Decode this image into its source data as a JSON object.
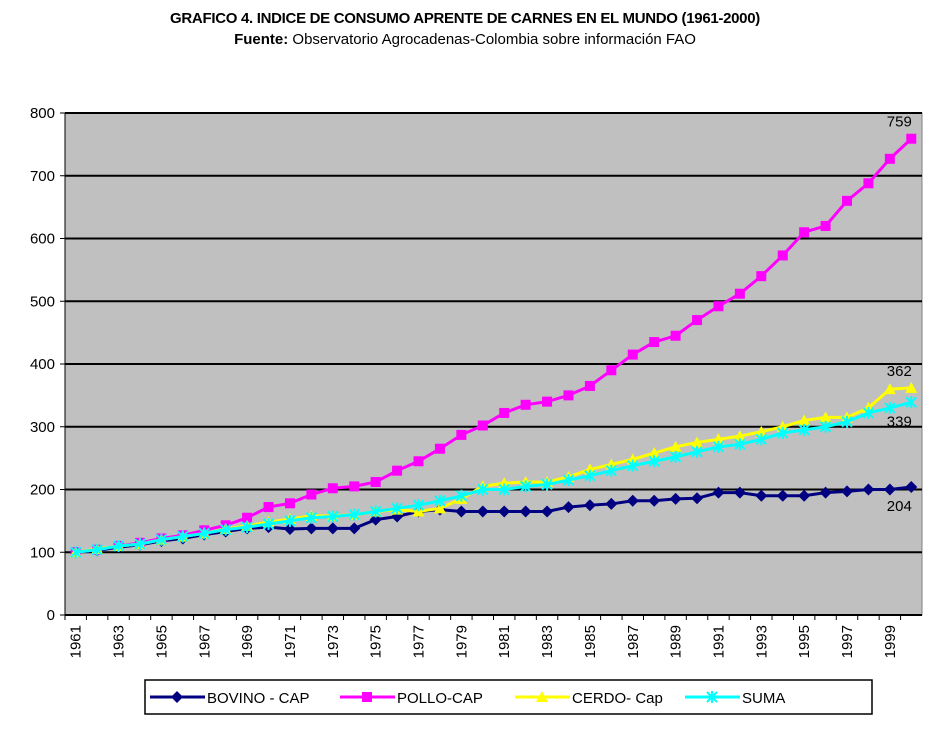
{
  "chart_data": {
    "type": "line",
    "title": "GRAFICO 4. INDICE DE CONSUMO APRENTE DE CARNES EN EL MUNDO (1961-2000)",
    "source_label": "Fuente:",
    "subtitle": "Observatorio Agrocadenas-Colombia sobre información FAO",
    "categories": [
      "1961",
      null,
      "1963",
      null,
      "1965",
      null,
      "1967",
      null,
      "1969",
      null,
      "1971",
      null,
      "1973",
      null,
      "1975",
      null,
      "1977",
      null,
      "1979",
      null,
      "1981",
      null,
      "1983",
      null,
      "1985",
      null,
      "1987",
      null,
      "1989",
      null,
      "1991",
      null,
      "1993",
      null,
      "1995",
      null,
      "1997",
      null,
      "1999",
      null
    ],
    "ylim": [
      0,
      800
    ],
    "yticks": [
      0,
      100,
      200,
      300,
      400,
      500,
      600,
      700,
      800
    ],
    "grid": true,
    "series": [
      {
        "name": "BOVINO - CAP",
        "color": "#000080",
        "marker": "diamond",
        "values": [
          100,
          103,
          108,
          112,
          118,
          122,
          128,
          133,
          138,
          140,
          137,
          138,
          138,
          138,
          152,
          157,
          165,
          168,
          165,
          165,
          165,
          165,
          165,
          172,
          175,
          177,
          182,
          182,
          185,
          186,
          195,
          195,
          190,
          190,
          190,
          195,
          197,
          200,
          200,
          204
        ]
      },
      {
        "name": "POLLO-CAP",
        "color": "#ff00ff",
        "marker": "square",
        "values": [
          100,
          104,
          110,
          115,
          122,
          127,
          135,
          143,
          155,
          172,
          178,
          192,
          202,
          205,
          212,
          230,
          245,
          265,
          287,
          302,
          322,
          335,
          340,
          350,
          365,
          390,
          415,
          435,
          445,
          470,
          492,
          512,
          540,
          573,
          610,
          620,
          660,
          688,
          727,
          759
        ]
      },
      {
        "name": "CERDO- Cap",
        "color": "#ffff00",
        "marker": "triangle",
        "values": [
          100,
          105,
          110,
          113,
          120,
          125,
          130,
          137,
          142,
          148,
          153,
          158,
          158,
          160,
          165,
          168,
          165,
          170,
          185,
          205,
          210,
          212,
          212,
          220,
          232,
          240,
          248,
          258,
          268,
          275,
          280,
          285,
          292,
          300,
          310,
          315,
          315,
          330,
          360,
          362
        ]
      },
      {
        "name": "SUMA",
        "color": "#00ffff",
        "marker": "x",
        "values": [
          100,
          104,
          110,
          113,
          120,
          125,
          130,
          136,
          140,
          145,
          150,
          155,
          157,
          160,
          165,
          170,
          175,
          182,
          190,
          200,
          200,
          205,
          208,
          215,
          222,
          230,
          238,
          245,
          252,
          260,
          268,
          272,
          280,
          290,
          295,
          300,
          308,
          322,
          330,
          339
        ]
      }
    ],
    "end_labels": [
      {
        "series": 1,
        "position": "above"
      },
      {
        "series": 2,
        "position": "above"
      },
      {
        "series": 3,
        "position": "below"
      },
      {
        "series": 0,
        "position": "below"
      }
    ]
  }
}
